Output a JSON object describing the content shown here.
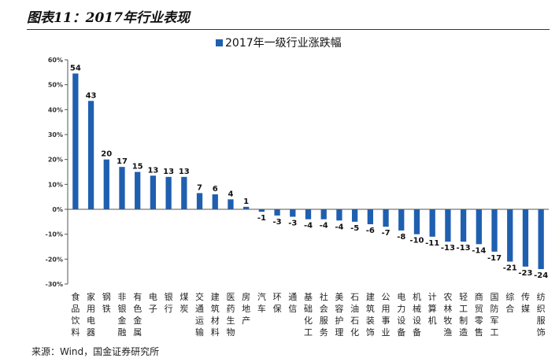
{
  "page": {
    "figure_title": "图表11：2017年行业表现",
    "source": "来源：Wind，国金证券研究所"
  },
  "chart_data": {
    "type": "bar",
    "legend": "2017年一级行业涨跌幅",
    "bar_color": "#1f5fb0",
    "ylim": [
      -30,
      60
    ],
    "yticks": [
      -30,
      -20,
      -10,
      0,
      10,
      20,
      30,
      40,
      50,
      60
    ],
    "ytick_labels": [
      "-30%",
      "-20%",
      "-10%",
      "0%",
      "10%",
      "20%",
      "30%",
      "40%",
      "50%",
      "60%"
    ],
    "categories": [
      "食品饮料",
      "家用电器",
      "钢铁",
      "非银金融",
      "有色金属",
      "电子",
      "银行",
      "煤炭",
      "交通运输",
      "建筑材料",
      "医药生物",
      "房地产",
      "汽车",
      "环保",
      "通信",
      "基础化工",
      "社会服务",
      "美容护理",
      "石油石化",
      "建筑装饰",
      "公用事业",
      "电力设备",
      "机械设备",
      "计算机",
      "农林牧渔",
      "轻工制造",
      "商贸零售",
      "国防军工",
      "综合",
      "传媒",
      "纺织服饰"
    ],
    "values": [
      54.5,
      43.5,
      20,
      17,
      15,
      13.5,
      13,
      13,
      6.5,
      6,
      4,
      1,
      -1,
      -2.5,
      -3,
      -4,
      -4,
      -4.5,
      -5,
      -6,
      -7,
      -8.5,
      -10,
      -11,
      -13,
      -13,
      -14,
      -17,
      -21,
      -23,
      -24
    ],
    "data_labels": [
      "54",
      "43",
      "20",
      "17",
      "15",
      "13",
      "13",
      "13",
      "7",
      "6",
      "4",
      "1",
      "-1",
      "-3",
      "-3",
      "-4",
      "-4",
      "-4",
      "-5",
      "-6",
      "-7",
      "-8",
      "-10",
      "-11",
      "-13",
      "-13",
      "-14",
      "-17",
      "-21",
      "-23",
      "-24"
    ]
  }
}
